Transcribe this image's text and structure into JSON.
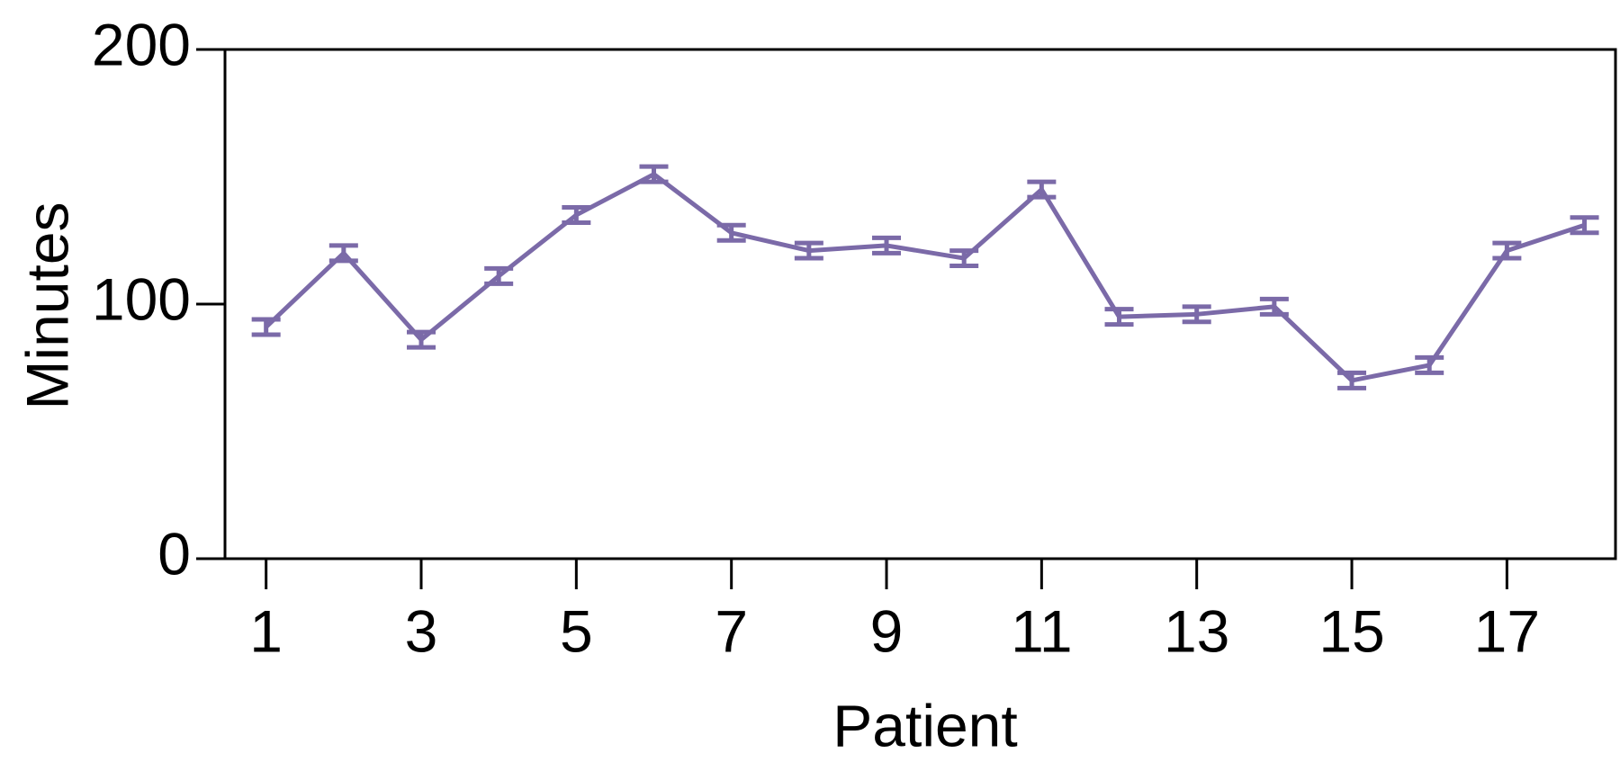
{
  "chart_data": {
    "type": "line",
    "x_label": "Patient",
    "y_label": "Minutes",
    "x": [
      1,
      2,
      3,
      4,
      5,
      6,
      7,
      8,
      9,
      10,
      11,
      12,
      13,
      14,
      15,
      16,
      17,
      18
    ],
    "series": [
      {
        "color": "#7b6aa8",
        "values": [
          91,
          120,
          86,
          111,
          135,
          151,
          128,
          121,
          123,
          118,
          145,
          95,
          96,
          99,
          70,
          76,
          121,
          131
        ],
        "errors": [
          3,
          3,
          3,
          3,
          3,
          3,
          3,
          3,
          3,
          3,
          3,
          3,
          3,
          3,
          3,
          3,
          3,
          3
        ]
      }
    ],
    "xlim": [
      0.47,
      18.4
    ],
    "xticks": [
      1,
      3,
      5,
      7,
      9,
      11,
      13,
      15,
      17
    ],
    "ylim": [
      0,
      200
    ],
    "yticks": [
      0,
      100,
      200
    ]
  }
}
